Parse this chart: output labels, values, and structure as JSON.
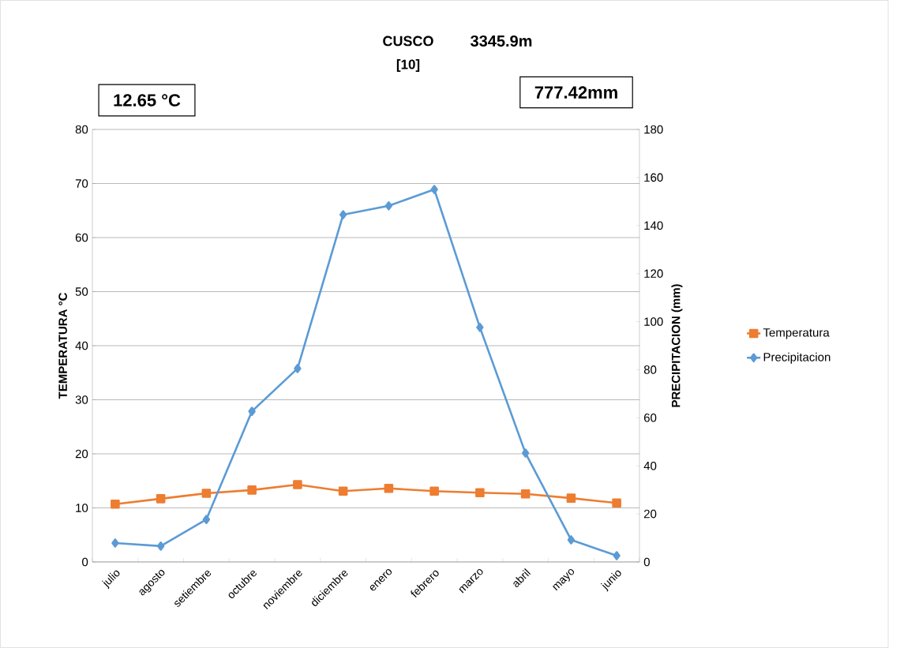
{
  "chart_data": {
    "type": "line",
    "title": "CUSCO",
    "subtitle": "[10]",
    "annotations": [
      "3345.9m",
      "12.65 °C",
      "777.42mm"
    ],
    "categories": [
      "julio",
      "agosto",
      "setiembre",
      "octubre",
      "noviembre",
      "diciembre",
      "enero",
      "febrero",
      "marzo",
      "abril",
      "mayo",
      "junio"
    ],
    "ylabel": "TEMPERATURA °C",
    "y2label": "PRECIPITACION (mm)",
    "ylim": [
      0,
      80
    ],
    "yticks": [
      0,
      10,
      20,
      30,
      40,
      50,
      60,
      70,
      80
    ],
    "y2lim": [
      0,
      180
    ],
    "y2ticks": [
      0,
      20,
      40,
      60,
      80,
      100,
      120,
      140,
      160,
      180
    ],
    "grid": "y",
    "legend": "right",
    "series": [
      {
        "name": "Temperatura",
        "color": "#ed7d31",
        "marker": "square",
        "values": [
          10.7,
          11.7,
          12.7,
          13.3,
          14.3,
          13.1,
          13.6,
          13.1,
          12.8,
          12.6,
          11.8,
          10.9
        ]
      },
      {
        "name": "Precipitacion",
        "color": "#5b9bd5",
        "marker": "diamond",
        "axis": "y2",
        "values": [
          7.9,
          6.6,
          17.7,
          62.7,
          80.5,
          144.5,
          148.2,
          155,
          97.6,
          45.3,
          9.2,
          2.6
        ]
      }
    ]
  }
}
